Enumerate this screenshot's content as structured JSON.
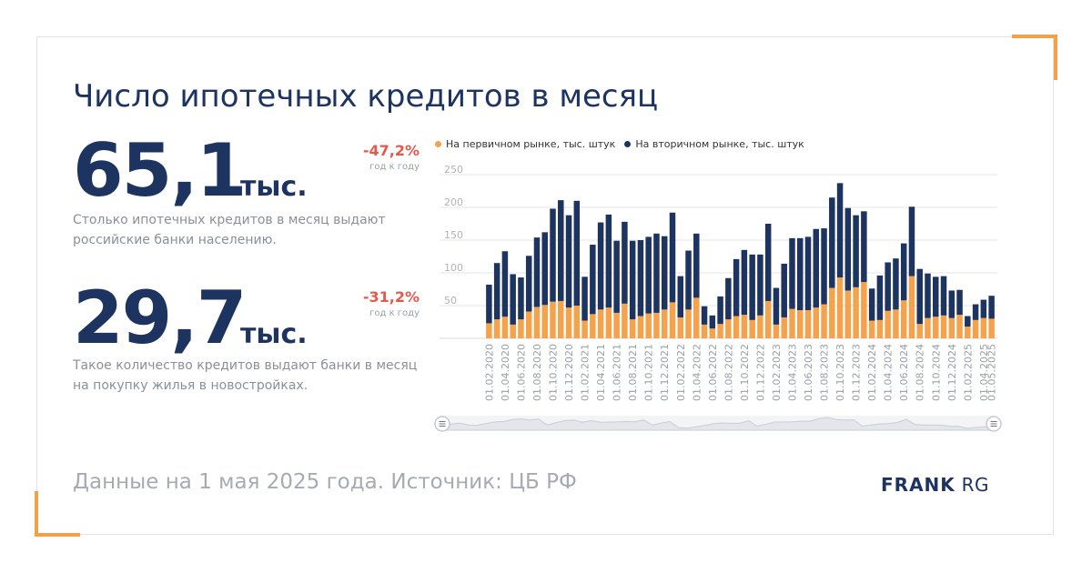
{
  "title": "Число ипотечных кредитов в месяц",
  "stat1": {
    "value": "65,1",
    "unit": "тыс.",
    "delta": "-47,2%",
    "delta_note": "год к году",
    "description": "Столько ипотечных кредитов в месяц выдают российские банки населению."
  },
  "stat2": {
    "value": "29,7",
    "unit": "тыс.",
    "delta": "-31,2%",
    "delta_note": "год к году",
    "description": "Такое количество кредитов выдают банки в месяц на покупку жилья в новостройках."
  },
  "footer": "Данные на 1 мая 2025 года. Источник: ЦБ РФ",
  "logo": {
    "bold": "FRANK",
    "light": "RG"
  },
  "colors": {
    "primary": "#f5a24d",
    "secondary": "#1d3461",
    "accent": "#e8584a",
    "corner": "#f2a14a"
  },
  "chart_data": {
    "type": "bar",
    "stacked": true,
    "ylim": [
      0,
      250
    ],
    "yticks": [
      50,
      100,
      150,
      200,
      250
    ],
    "grid": true,
    "legend_position": "top",
    "categories": [
      "01.02.2020",
      "01.03.2020",
      "01.04.2020",
      "01.05.2020",
      "01.06.2020",
      "01.07.2020",
      "01.08.2020",
      "01.09.2020",
      "01.10.2020",
      "01.11.2020",
      "01.12.2020",
      "01.01.2021",
      "01.02.2021",
      "01.03.2021",
      "01.04.2021",
      "01.05.2021",
      "01.06.2021",
      "01.07.2021",
      "01.08.2021",
      "01.09.2021",
      "01.10.2021",
      "01.11.2021",
      "01.12.2021",
      "01.01.2022",
      "01.02.2022",
      "01.03.2022",
      "01.04.2022",
      "01.05.2022",
      "01.06.2022",
      "01.07.2022",
      "01.08.2022",
      "01.09.2022",
      "01.10.2022",
      "01.11.2022",
      "01.12.2022",
      "01.01.2023",
      "01.02.2023",
      "01.03.2023",
      "01.04.2023",
      "01.05.2023",
      "01.06.2023",
      "01.07.2023",
      "01.08.2023",
      "01.09.2023",
      "01.10.2023",
      "01.11.2023",
      "01.12.2023",
      "01.01.2024",
      "01.02.2024",
      "01.03.2024",
      "01.04.2024",
      "01.05.2024",
      "01.06.2024",
      "01.07.2024",
      "01.08.2024",
      "01.09.2024",
      "01.10.2024",
      "01.11.2024",
      "01.12.2024",
      "01.01.2025",
      "01.02.2025",
      "01.03.2025",
      "01.04.2025",
      "01.05.2025"
    ],
    "xtick_labels": [
      "01.02.2020",
      "01.04.2020",
      "01.06.2020",
      "01.08.2020",
      "01.10.2020",
      "01.12.2020",
      "01.02.2021",
      "01.04.2021",
      "01.06.2021",
      "01.08.2021",
      "01.10.2021",
      "01.12.2021",
      "01.02.2022",
      "01.04.2022",
      "01.06.2022",
      "01.08.2022",
      "01.10.2022",
      "01.12.2022",
      "01.02.2023",
      "01.04.2023",
      "01.06.2023",
      "01.08.2023",
      "01.10.2023",
      "01.12.2023",
      "01.02.2024",
      "01.04.2024",
      "01.06.2024",
      "01.08.2024",
      "01.10.2024",
      "01.12.2024",
      "01.02.2025",
      "01.04.2025",
      "01.05.2025"
    ],
    "series": [
      {
        "name": "На первичном рынке, тыс. штук",
        "color": "#f5a24d",
        "values": [
          23,
          29,
          33,
          21,
          29,
          41,
          48,
          51,
          56,
          57,
          47,
          50,
          27,
          37,
          44,
          47,
          39,
          53,
          29,
          34,
          38,
          39,
          44,
          55,
          32,
          44,
          62,
          21,
          15,
          22,
          29,
          34,
          36,
          28,
          35,
          57,
          21,
          32,
          45,
          43,
          43,
          47,
          52,
          77,
          93,
          73,
          78,
          86,
          27,
          28,
          42,
          44,
          58,
          95,
          22,
          31,
          33,
          35,
          31,
          36,
          18,
          28,
          31,
          30
        ]
      },
      {
        "name": "На вторичном рынке, тыс. штук",
        "color": "#1d3461",
        "values": [
          59,
          86,
          100,
          77,
          64,
          85,
          106,
          111,
          142,
          154,
          141,
          160,
          67,
          106,
          133,
          142,
          110,
          125,
          120,
          116,
          117,
          121,
          112,
          137,
          63,
          90,
          98,
          28,
          20,
          42,
          63,
          87,
          99,
          100,
          93,
          118,
          56,
          82,
          108,
          110,
          112,
          120,
          116,
          138,
          144,
          126,
          110,
          108,
          49,
          68,
          74,
          78,
          87,
          106,
          84,
          68,
          61,
          60,
          42,
          38,
          16,
          24,
          28,
          35
        ]
      }
    ]
  }
}
